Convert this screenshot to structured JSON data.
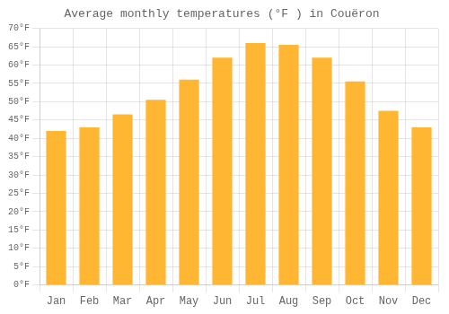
{
  "chart_data": {
    "type": "bar",
    "title": "Average monthly temperatures (°F ) in Couëron",
    "categories": [
      "Jan",
      "Feb",
      "Mar",
      "Apr",
      "May",
      "Jun",
      "Jul",
      "Aug",
      "Sep",
      "Oct",
      "Nov",
      "Dec"
    ],
    "values": [
      42,
      43,
      46.5,
      50.5,
      56,
      62,
      66,
      65.5,
      62,
      55.5,
      47.5,
      43
    ],
    "color": "#FFB733",
    "ylim": [
      0,
      70
    ],
    "yticks": [
      {
        "value": 0,
        "label": "0°F"
      },
      {
        "value": 5,
        "label": "5°F"
      },
      {
        "value": 10,
        "label": "10°F"
      },
      {
        "value": 15,
        "label": "15°F"
      },
      {
        "value": 20,
        "label": "20°F"
      },
      {
        "value": 25,
        "label": "25°F"
      },
      {
        "value": 30,
        "label": "30°F"
      },
      {
        "value": 35,
        "label": "35°F"
      },
      {
        "value": 40,
        "label": "40°F"
      },
      {
        "value": 45,
        "label": "45°F"
      },
      {
        "value": 50,
        "label": "50°F"
      },
      {
        "value": 55,
        "label": "55°F"
      },
      {
        "value": 60,
        "label": "60°F"
      },
      {
        "value": 65,
        "label": "65°F"
      },
      {
        "value": 70,
        "label": "70°F"
      }
    ],
    "grid": true
  }
}
